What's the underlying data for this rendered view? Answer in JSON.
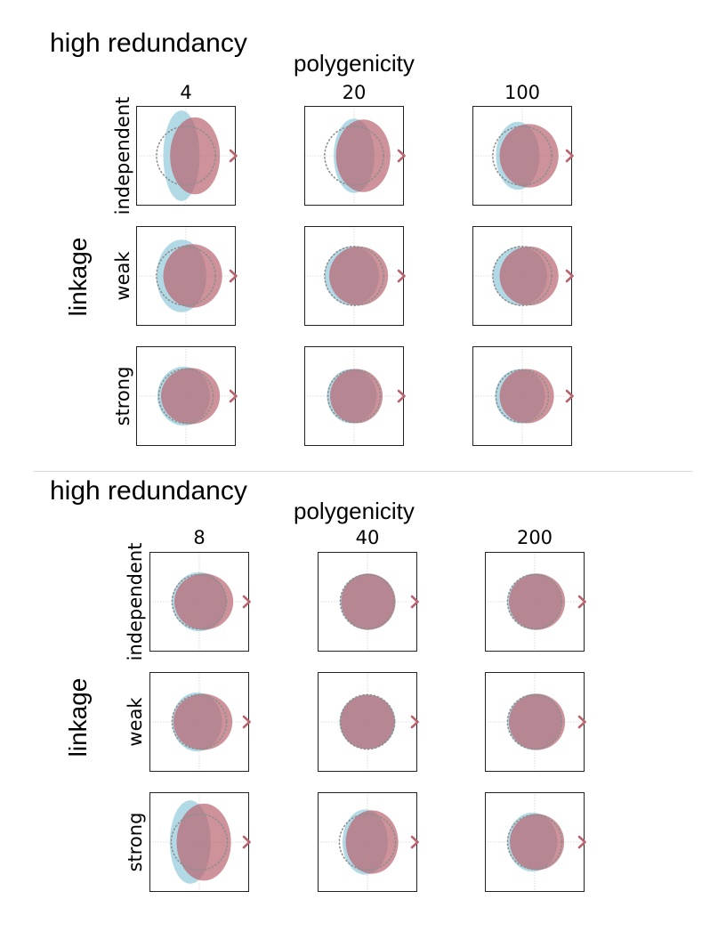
{
  "colors": {
    "blue": "#9fd1e0",
    "red": "#b8646f",
    "overlap": "#a7707c",
    "dotted": "#8e8e8e",
    "grid": "#d2d2d2"
  },
  "panels": [
    {
      "title": "high redundancy",
      "col_axis_label": "polygenicity",
      "row_axis_label": "linkage",
      "col_labels": [
        "4",
        "20",
        "100"
      ],
      "row_labels": [
        "independent",
        "weak",
        "strong"
      ]
    },
    {
      "title": "high redundancy",
      "col_axis_label": "polygenicity",
      "row_axis_label": "linkage",
      "col_labels": [
        "8",
        "40",
        "200"
      ],
      "row_labels": [
        "independent",
        "weak",
        "strong"
      ]
    }
  ],
  "chart_data": [
    {
      "type": "scatter",
      "title": "high redundancy",
      "xlabel": "polygenicity",
      "ylabel": "linkage",
      "grid": true,
      "xlim": [
        -1.1,
        1.1
      ],
      "ylim": [
        -1.1,
        1.1
      ],
      "categories": [
        "4",
        "20",
        "100"
      ],
      "rows": [
        "independent",
        "weak",
        "strong"
      ],
      "cells": [
        [
          {
            "blue": {
              "cx": -0.1,
              "rx": 0.4,
              "ry": 1.0
            },
            "red": {
              "cx": 0.2,
              "rx": 0.55,
              "ry": 0.85
            },
            "dotted_r": 0.65
          },
          {
            "blue": {
              "cx": 0.0,
              "rx": 0.45,
              "ry": 0.82
            },
            "red": {
              "cx": 0.2,
              "rx": 0.6,
              "ry": 0.8
            },
            "dotted_r": 0.65
          },
          {
            "blue": {
              "cx": -0.1,
              "rx": 0.48,
              "ry": 0.75
            },
            "red": {
              "cx": 0.15,
              "rx": 0.65,
              "ry": 0.7
            },
            "dotted_r": 0.65
          }
        ],
        [
          {
            "blue": {
              "cx": -0.1,
              "rx": 0.55,
              "ry": 0.8
            },
            "red": {
              "cx": 0.15,
              "rx": 0.65,
              "ry": 0.7
            },
            "dotted_r": 0.65
          },
          {
            "blue": {
              "cx": -0.05,
              "rx": 0.6,
              "ry": 0.65
            },
            "red": {
              "cx": 0.1,
              "rx": 0.65,
              "ry": 0.65
            },
            "dotted_r": 0.65
          },
          {
            "blue": {
              "cx": -0.05,
              "rx": 0.6,
              "ry": 0.65
            },
            "red": {
              "cx": 0.15,
              "rx": 0.65,
              "ry": 0.65
            },
            "dotted_r": 0.65
          }
        ],
        [
          {
            "blue": {
              "cx": -0.05,
              "rx": 0.58,
              "ry": 0.65
            },
            "red": {
              "cx": 0.1,
              "rx": 0.65,
              "ry": 0.62
            },
            "dotted_r": 0.6
          },
          {
            "blue": {
              "cx": -0.05,
              "rx": 0.55,
              "ry": 0.6
            },
            "red": {
              "cx": 0.05,
              "rx": 0.58,
              "ry": 0.6
            },
            "dotted_r": 0.58
          },
          {
            "blue": {
              "cx": -0.05,
              "rx": 0.55,
              "ry": 0.6
            },
            "red": {
              "cx": 0.1,
              "rx": 0.6,
              "ry": 0.6
            },
            "dotted_r": 0.58
          }
        ]
      ]
    },
    {
      "type": "scatter",
      "title": "high redundancy",
      "xlabel": "polygenicity",
      "ylabel": "linkage",
      "grid": true,
      "xlim": [
        -1.1,
        1.1
      ],
      "ylim": [
        -1.1,
        1.1
      ],
      "categories": [
        "8",
        "40",
        "200"
      ],
      "rows": [
        "independent",
        "weak",
        "strong"
      ],
      "cells": [
        [
          {
            "blue": {
              "cx": 0.0,
              "rx": 0.6,
              "ry": 0.65
            },
            "red": {
              "cx": 0.1,
              "rx": 0.65,
              "ry": 0.62
            },
            "dotted_r": 0.6
          },
          {
            "blue": {
              "cx": 0.0,
              "rx": 0.6,
              "ry": 0.62
            },
            "red": {
              "cx": 0.02,
              "rx": 0.6,
              "ry": 0.62
            },
            "dotted_r": 0.6
          },
          {
            "blue": {
              "cx": 0.0,
              "rx": 0.6,
              "ry": 0.62
            },
            "red": {
              "cx": 0.05,
              "rx": 0.62,
              "ry": 0.62
            },
            "dotted_r": 0.6
          }
        ],
        [
          {
            "blue": {
              "cx": -0.05,
              "rx": 0.55,
              "ry": 0.65
            },
            "red": {
              "cx": 0.08,
              "rx": 0.65,
              "ry": 0.62
            },
            "dotted_r": 0.6
          },
          {
            "blue": {
              "cx": 0.0,
              "rx": 0.62,
              "ry": 0.6
            },
            "red": {
              "cx": 0.0,
              "rx": 0.6,
              "ry": 0.6
            },
            "dotted_r": 0.6
          },
          {
            "blue": {
              "cx": 0.0,
              "rx": 0.6,
              "ry": 0.62
            },
            "red": {
              "cx": 0.05,
              "rx": 0.62,
              "ry": 0.62
            },
            "dotted_r": 0.6
          }
        ],
        [
          {
            "blue": {
              "cx": -0.2,
              "rx": 0.45,
              "ry": 0.92
            },
            "red": {
              "cx": 0.1,
              "rx": 0.6,
              "ry": 0.85
            },
            "dotted_r": 0.62
          },
          {
            "blue": {
              "cx": -0.05,
              "rx": 0.5,
              "ry": 0.72
            },
            "red": {
              "cx": 0.1,
              "rx": 0.58,
              "ry": 0.7
            },
            "dotted_r": 0.62
          },
          {
            "blue": {
              "cx": -0.05,
              "rx": 0.55,
              "ry": 0.65
            },
            "red": {
              "cx": 0.05,
              "rx": 0.6,
              "ry": 0.62
            },
            "dotted_r": 0.6
          }
        ]
      ]
    }
  ]
}
